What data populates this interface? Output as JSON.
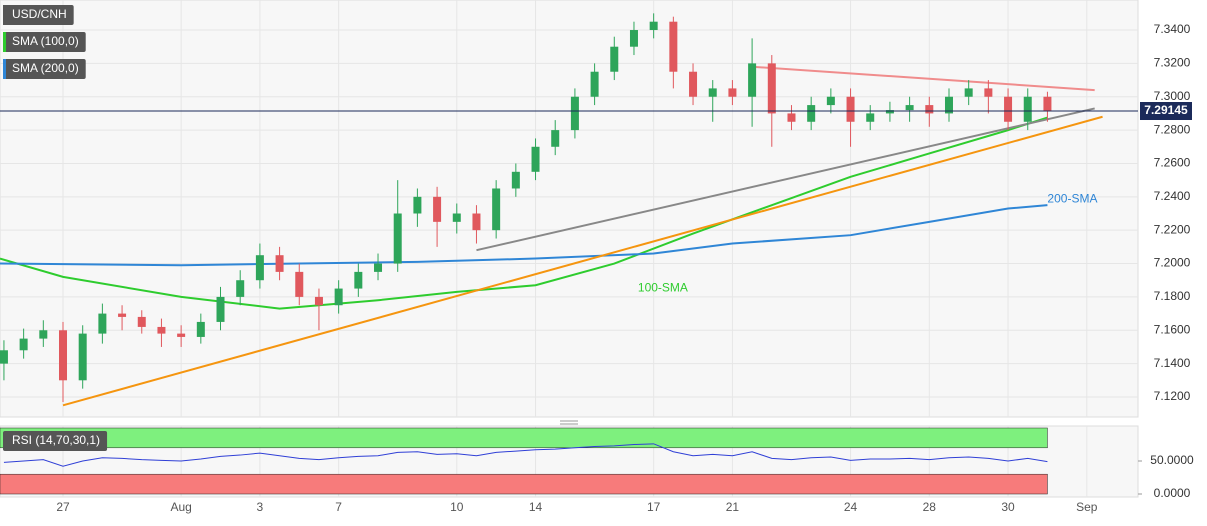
{
  "chart_data": [
    {
      "type": "candlestick",
      "legend": [
        "USD/CNH",
        "SMA (100,0)",
        "SMA (200,0)"
      ],
      "legend_colors": [
        "#555555",
        "#2ecc2e",
        "#2f86d6"
      ],
      "up_color": "#2ea55a",
      "down_color": "#e0585d",
      "grid": true,
      "x": [
        -1.5,
        -1,
        -0.5,
        0,
        0.5,
        1,
        1.5,
        2,
        2.5,
        3,
        3.5,
        4,
        4.5,
        5,
        5.5,
        6,
        6.5,
        7,
        7.5,
        8,
        8.5,
        9,
        9.5,
        10,
        10.5,
        11,
        11.5,
        12,
        12.5,
        13,
        13.5,
        14,
        14.5,
        15,
        15.5,
        16,
        16.5,
        17,
        17.5,
        18,
        18.5,
        19,
        19.5,
        20,
        20.5,
        21,
        21.5,
        22,
        22.5,
        23,
        23.5,
        24,
        24.5,
        25
      ],
      "open": [
        7.14,
        7.148,
        7.155,
        7.16,
        7.13,
        7.158,
        7.17,
        7.168,
        7.162,
        7.158,
        7.156,
        7.165,
        7.18,
        7.19,
        7.205,
        7.195,
        7.18,
        7.175,
        7.185,
        7.195,
        7.2,
        7.23,
        7.24,
        7.225,
        7.23,
        7.22,
        7.245,
        7.255,
        7.27,
        7.28,
        7.3,
        7.315,
        7.33,
        7.34,
        7.345,
        7.315,
        7.3,
        7.305,
        7.3,
        7.32,
        7.29,
        7.285,
        7.295,
        7.3,
        7.285,
        7.29,
        7.292,
        7.295,
        7.29,
        7.3,
        7.305,
        7.3,
        7.285,
        7.3
      ],
      "high": [
        7.154,
        7.161,
        7.166,
        7.165,
        7.163,
        7.176,
        7.175,
        7.172,
        7.167,
        7.163,
        7.17,
        7.186,
        7.196,
        7.212,
        7.21,
        7.2,
        7.185,
        7.19,
        7.2,
        7.206,
        7.25,
        7.245,
        7.246,
        7.236,
        7.235,
        7.25,
        7.26,
        7.275,
        7.286,
        7.305,
        7.32,
        7.336,
        7.345,
        7.35,
        7.348,
        7.32,
        7.31,
        7.31,
        7.335,
        7.325,
        7.295,
        7.3,
        7.305,
        7.305,
        7.295,
        7.297,
        7.3,
        7.3,
        7.305,
        7.31,
        7.31,
        7.305,
        7.305,
        7.303
      ],
      "low": [
        7.13,
        7.143,
        7.15,
        7.117,
        7.125,
        7.152,
        7.16,
        7.158,
        7.15,
        7.15,
        7.152,
        7.16,
        7.175,
        7.185,
        7.19,
        7.175,
        7.16,
        7.17,
        7.18,
        7.19,
        7.195,
        7.222,
        7.21,
        7.218,
        7.212,
        7.215,
        7.24,
        7.25,
        7.265,
        7.275,
        7.295,
        7.31,
        7.325,
        7.335,
        7.305,
        7.295,
        7.285,
        7.295,
        7.282,
        7.27,
        7.28,
        7.28,
        7.29,
        7.27,
        7.28,
        7.285,
        7.285,
        7.282,
        7.285,
        7.295,
        7.29,
        7.28,
        7.28,
        7.285
      ],
      "close": [
        7.148,
        7.155,
        7.16,
        7.13,
        7.158,
        7.17,
        7.168,
        7.162,
        7.158,
        7.156,
        7.165,
        7.18,
        7.19,
        7.205,
        7.195,
        7.18,
        7.175,
        7.185,
        7.195,
        7.2,
        7.23,
        7.24,
        7.225,
        7.23,
        7.22,
        7.245,
        7.255,
        7.27,
        7.28,
        7.3,
        7.315,
        7.33,
        7.34,
        7.345,
        7.315,
        7.3,
        7.305,
        7.3,
        7.32,
        7.29,
        7.285,
        7.295,
        7.3,
        7.285,
        7.29,
        7.292,
        7.295,
        7.29,
        7.3,
        7.305,
        7.3,
        7.285,
        7.3,
        7.2915
      ],
      "series": [
        {
          "name": "SMA (100,0)",
          "color": "#2ecc2e",
          "x": [
            -1.6,
            0,
            3,
            5.5,
            8,
            10,
            12,
            14,
            16,
            18,
            20,
            22,
            24,
            25
          ],
          "values": [
            7.203,
            7.192,
            7.18,
            7.173,
            7.178,
            7.183,
            7.187,
            7.2,
            7.218,
            7.235,
            7.252,
            7.266,
            7.28,
            7.2875
          ]
        },
        {
          "name": "SMA (200,0)",
          "color": "#2f86d6",
          "x": [
            -1.6,
            3,
            6,
            9,
            12,
            15,
            17,
            20,
            22,
            24,
            25
          ],
          "values": [
            7.2,
            7.199,
            7.2,
            7.201,
            7.203,
            7.206,
            7.212,
            7.217,
            7.225,
            7.233,
            7.235
          ]
        },
        {
          "color": "#f5950f",
          "x": [
            0,
            26.4
          ],
          "values": [
            7.115,
            7.288
          ]
        },
        {
          "color": "#888888",
          "x": [
            10.5,
            26.2
          ],
          "values": [
            7.208,
            7.293
          ]
        },
        {
          "color": "#f08c8c",
          "x": [
            17.5,
            26.2
          ],
          "values": [
            7.318,
            7.304
          ]
        }
      ],
      "annotations": [
        {
          "text": "100-SMA",
          "x": 14.6,
          "y": 7.185,
          "color": "#2ecc2e"
        },
        {
          "text": "200-SMA",
          "x": 25,
          "y": 7.2385,
          "color": "#2f86d6"
        }
      ],
      "last_price": 7.29145,
      "xlim": [
        -1.6,
        27.3
      ],
      "ylim": [
        7.108,
        7.358
      ],
      "xticks": [
        {
          "value": 0,
          "label": "27"
        },
        {
          "value": 3,
          "label": "Aug"
        },
        {
          "value": 5,
          "label": "3"
        },
        {
          "value": 7,
          "label": "7"
        },
        {
          "value": 10,
          "label": "10"
        },
        {
          "value": 12,
          "label": "14"
        },
        {
          "value": 15,
          "label": "17"
        },
        {
          "value": 17,
          "label": "21"
        },
        {
          "value": 20,
          "label": "24"
        },
        {
          "value": 22,
          "label": "28"
        },
        {
          "value": 24,
          "label": "30"
        },
        {
          "value": 26,
          "label": "Sep"
        }
      ],
      "yticks": [
        {
          "value": 7.12,
          "label": "7.1200"
        },
        {
          "value": 7.14,
          "label": "7.1400"
        },
        {
          "value": 7.16,
          "label": "7.1600"
        },
        {
          "value": 7.18,
          "label": "7.1800"
        },
        {
          "value": 7.2,
          "label": "7.2000"
        },
        {
          "value": 7.22,
          "label": "7.2200"
        },
        {
          "value": 7.24,
          "label": "7.2400"
        },
        {
          "value": 7.26,
          "label": "7.2600"
        },
        {
          "value": 7.28,
          "label": "7.2800"
        },
        {
          "value": 7.3,
          "label": "7.3000"
        },
        {
          "value": 7.32,
          "label": "7.3200"
        },
        {
          "value": 7.34,
          "label": "7.3400"
        }
      ]
    },
    {
      "type": "line",
      "legend": [
        "RSI (14,70,30,1)"
      ],
      "color": "#2f3fd6",
      "bands": [
        {
          "from": 70,
          "to": 100,
          "color": "#7ef07e"
        },
        {
          "from": 0,
          "to": 30,
          "color": "#f77b7b"
        }
      ],
      "band_end": 25,
      "x": [
        -1.5,
        -1,
        -0.5,
        0,
        0.5,
        1,
        1.5,
        2,
        2.5,
        3,
        3.5,
        4,
        4.5,
        5,
        5.5,
        6,
        6.5,
        7,
        7.5,
        8,
        8.5,
        9,
        9.5,
        10,
        10.5,
        11,
        11.5,
        12,
        12.5,
        13,
        13.5,
        14,
        14.5,
        15,
        15.5,
        16,
        16.5,
        17,
        17.5,
        18,
        18.5,
        19,
        19.5,
        20,
        20.5,
        21,
        21.5,
        22,
        22.5,
        23,
        23.5,
        24,
        24.5,
        25
      ],
      "values": [
        48,
        50,
        52,
        42,
        50,
        55,
        54,
        52,
        51,
        50,
        53,
        57,
        59,
        62,
        58,
        54,
        52,
        55,
        57,
        58,
        63,
        64,
        60,
        61,
        58,
        63,
        65,
        67,
        68,
        70,
        72,
        73,
        75,
        76,
        64,
        58,
        60,
        58,
        64,
        54,
        52,
        55,
        56,
        51,
        53,
        53,
        54,
        52,
        55,
        56,
        54,
        50,
        54,
        49
      ],
      "xlim": [
        -1.6,
        27.3
      ],
      "ylim": [
        0,
        100
      ],
      "yticks": [
        {
          "value": 0,
          "label": "0.0000"
        },
        {
          "value": 50,
          "label": "50.0000"
        }
      ]
    }
  ]
}
